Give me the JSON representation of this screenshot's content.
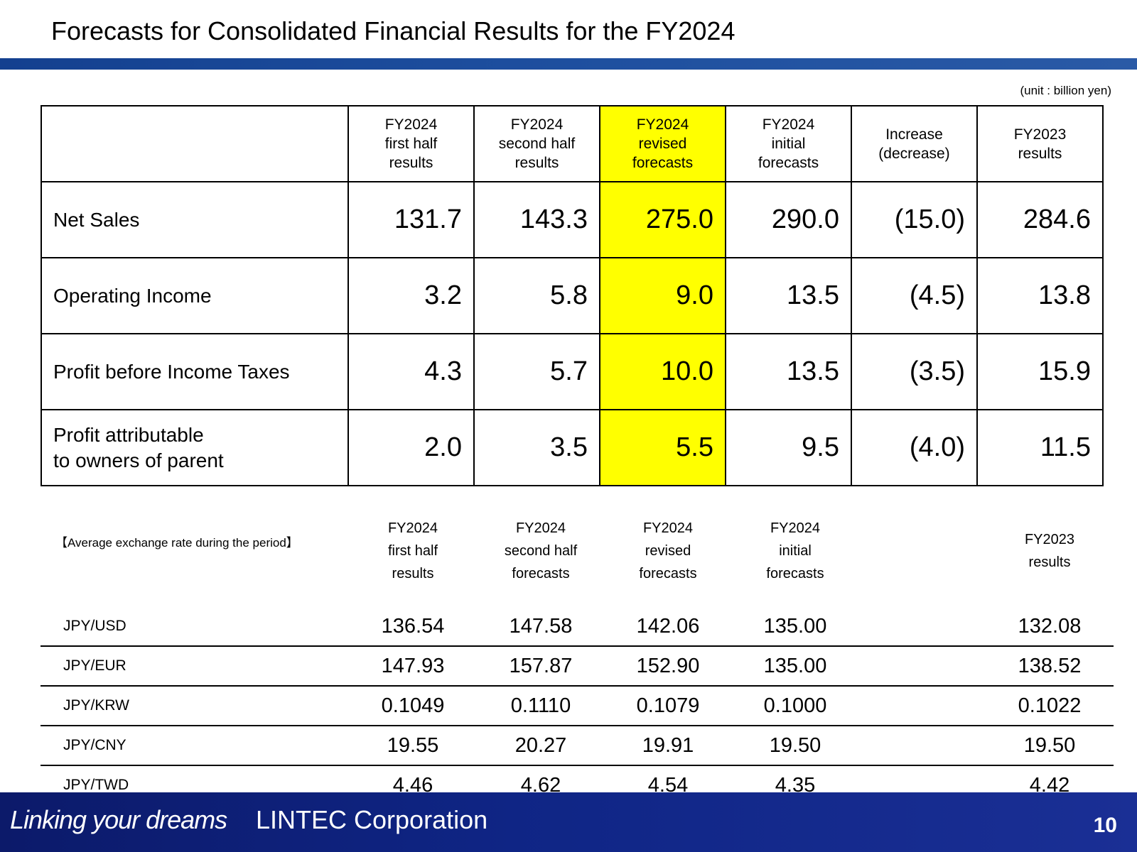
{
  "title": "Forecasts for Consolidated Financial Results for the FY2024",
  "unit_note": "(unit : billion yen)",
  "results_table": {
    "headers": [
      "FY2024\nfirst half\nresults",
      "FY2024\nsecond half\nresults",
      "FY2024\nrevised\nforecasts",
      "FY2024\ninitial\nforecasts",
      "Increase\n(decrease)",
      "FY2023\nresults"
    ],
    "highlight_color": "#ffff00",
    "rows": [
      {
        "label": "Net Sales",
        "values": [
          "131.7",
          "143.3",
          "275.0",
          "290.0",
          "(15.0)",
          "284.6"
        ]
      },
      {
        "label": "Operating Income",
        "values": [
          "3.2",
          "5.8",
          "9.0",
          "13.5",
          "(4.5)",
          "13.8"
        ]
      },
      {
        "label": "Profit before Income Taxes",
        "values": [
          "4.3",
          "5.7",
          "10.0",
          "13.5",
          "(3.5)",
          "15.9"
        ]
      },
      {
        "label": "Profit attributable\nto owners of parent",
        "values": [
          "2.0",
          "3.5",
          "5.5",
          "9.5",
          "(4.0)",
          "11.5"
        ]
      }
    ]
  },
  "fx_table": {
    "title": "【Average exchange rate during the period】",
    "headers": [
      "FY2024\nfirst half\nresults",
      "FY2024\nsecond half\nforecasts",
      "FY2024\nrevised\nforecasts",
      "FY2024\ninitial\nforecasts",
      "FY2023\nresults"
    ],
    "rows": [
      {
        "currency": "JPY/USD",
        "values": [
          "136.54",
          "147.58",
          "142.06",
          "135.00",
          "132.08"
        ]
      },
      {
        "currency": "JPY/EUR",
        "values": [
          "147.93",
          "157.87",
          "152.90",
          "135.00",
          "138.52"
        ]
      },
      {
        "currency": "JPY/KRW",
        "values": [
          "0.1049",
          "0.1110",
          "0.1079",
          "0.1000",
          "0.1022"
        ]
      },
      {
        "currency": "JPY/CNY",
        "values": [
          "19.55",
          "20.27",
          "19.91",
          "19.50",
          "19.50"
        ]
      },
      {
        "currency": "JPY/TWD",
        "values": [
          "4.46",
          "4.62",
          "4.54",
          "4.35",
          "4.42"
        ]
      }
    ]
  },
  "footer": {
    "slogan": "Linking your dreams",
    "company": "LINTEC Corporation",
    "page_number": "10"
  }
}
